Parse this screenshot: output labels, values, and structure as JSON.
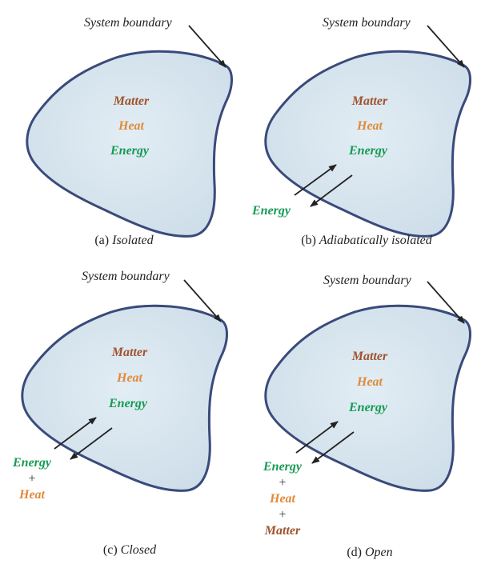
{
  "colors": {
    "matter": "#a0522d",
    "heat": "#e08a3c",
    "energy": "#169a55",
    "boundary": "#3a4a7a",
    "fill": "#d6e4ee"
  },
  "common": {
    "boundary_label": "System boundary",
    "matter": "Matter",
    "heat": "Heat",
    "energy": "Energy",
    "plus": "+"
  },
  "panels": [
    {
      "id": "a",
      "caption_prefix": "(a) ",
      "caption_text": "Isolated",
      "exchange": []
    },
    {
      "id": "b",
      "caption_prefix": "(b) ",
      "caption_text": "Adiabatically isolated",
      "exchange": [
        "Energy"
      ]
    },
    {
      "id": "c",
      "caption_prefix": "(c) ",
      "caption_text": "Closed",
      "exchange": [
        "Energy",
        "Heat"
      ]
    },
    {
      "id": "d",
      "caption_prefix": "(d) ",
      "caption_text": "Open",
      "exchange": [
        "Energy",
        "Heat",
        "Matter"
      ]
    }
  ]
}
